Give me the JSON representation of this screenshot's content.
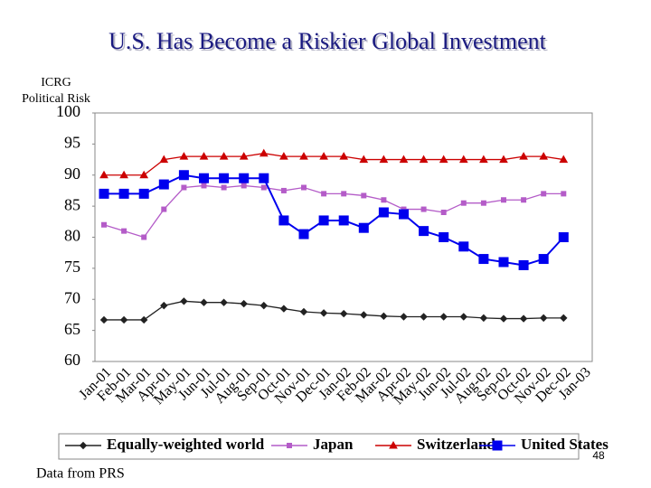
{
  "chart_data": {
    "type": "line",
    "title": "U.S. Has Become a Riskier Global Investment",
    "y_label": [
      "ICRG",
      "Political Risk"
    ],
    "source": "Data from PRS",
    "page_number": "48",
    "categories": [
      "Jan-01",
      "Feb-01",
      "Mar-01",
      "Apr-01",
      "May-01",
      "Jun-01",
      "Jul-01",
      "Aug-01",
      "Sep-01",
      "Oct-01",
      "Nov-01",
      "Dec-01",
      "Jan-02",
      "Feb-02",
      "Mar-02",
      "Apr-02",
      "May-02",
      "Jun-02",
      "Jul-02",
      "Aug-02",
      "Sep-02",
      "Oct-02",
      "Nov-02",
      "Dec-02",
      "Jan-03"
    ],
    "ylim": [
      60,
      100
    ],
    "yticks": [
      60,
      65,
      70,
      75,
      80,
      85,
      90,
      95,
      100
    ],
    "legend": "bottom",
    "series": [
      {
        "name": "Equally-weighted world",
        "color": "#222222",
        "marker": "diamond",
        "values": [
          66.7,
          66.7,
          66.7,
          69,
          69.7,
          69.5,
          69.5,
          69.3,
          69,
          68.5,
          68,
          67.8,
          67.7,
          67.5,
          67.3,
          67.2,
          67.2,
          67.2,
          67.2,
          67,
          66.9,
          66.9,
          67,
          67,
          null
        ]
      },
      {
        "name": "Japan",
        "color": "#b45cc8",
        "marker": "square",
        "values": [
          82,
          81,
          80,
          84.5,
          88,
          88.3,
          88,
          88.3,
          88,
          87.5,
          88,
          87,
          87,
          86.7,
          86,
          84.5,
          84.5,
          84,
          85.5,
          85.5,
          86,
          86,
          87,
          87,
          null
        ]
      },
      {
        "name": "Switzerland",
        "color": "#cc0000",
        "marker": "triangle",
        "values": [
          90,
          90,
          90,
          92.5,
          93,
          93,
          93,
          93,
          93.5,
          93,
          93,
          93,
          93,
          92.5,
          92.5,
          92.5,
          92.5,
          92.5,
          92.5,
          92.5,
          92.5,
          93,
          93,
          92.5,
          null
        ]
      },
      {
        "name": "United States",
        "color": "#0000ee",
        "marker": "bigsquare",
        "values": [
          87,
          87,
          87,
          88.5,
          90,
          89.5,
          89.5,
          89.5,
          89.5,
          82.7,
          80.5,
          82.7,
          82.7,
          81.5,
          84,
          83.7,
          81,
          80,
          78.5,
          76.5,
          76,
          75.5,
          76.5,
          80,
          null
        ]
      }
    ]
  }
}
